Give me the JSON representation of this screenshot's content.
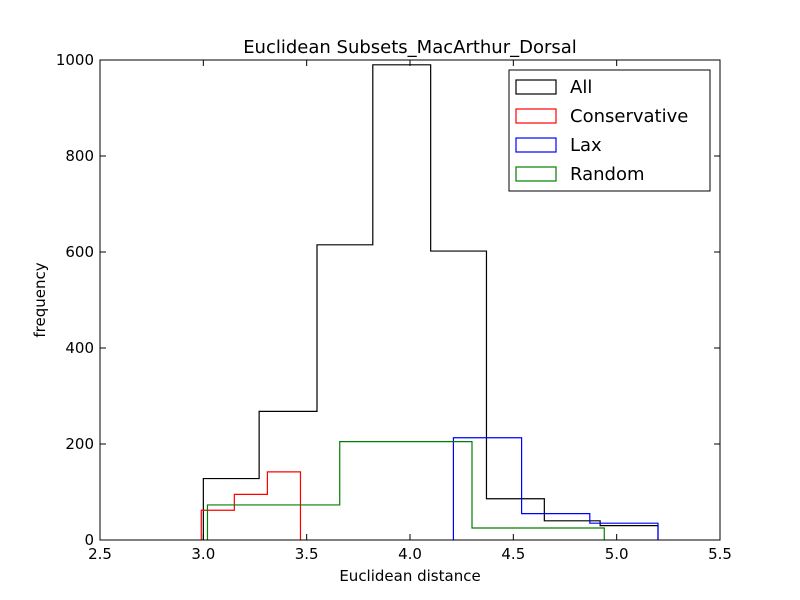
{
  "chart_data": {
    "type": "histogram",
    "title": "Euclidean Subsets_MacArthur_Dorsal",
    "xlabel": "Euclidean distance",
    "ylabel": "frequency",
    "xlim": [
      2.5,
      5.5
    ],
    "ylim": [
      0,
      1000
    ],
    "xticks": [
      "2.5",
      "3.0",
      "3.5",
      "4.0",
      "4.5",
      "5.0",
      "5.5"
    ],
    "yticks": [
      "0",
      "200",
      "400",
      "600",
      "800",
      "1000"
    ],
    "grid": false,
    "legend_position": "top-right",
    "series": [
      {
        "name": "All",
        "color": "#000000",
        "edges": [
          3.0,
          3.27,
          3.55,
          3.82,
          4.1,
          4.37,
          4.65,
          4.92,
          5.2
        ],
        "counts": [
          128,
          268,
          615,
          990,
          602,
          86,
          40,
          30
        ]
      },
      {
        "name": "Conservative",
        "color": "#ff0000",
        "edges": [
          2.99,
          3.15,
          3.31,
          3.47
        ],
        "counts": [
          62,
          95,
          142
        ]
      },
      {
        "name": "Lax",
        "color": "#0000ff",
        "edges": [
          4.21,
          4.54,
          4.87,
          5.2
        ],
        "counts": [
          213,
          55,
          35
        ]
      },
      {
        "name": "Random",
        "color": "#008000",
        "edges": [
          3.02,
          3.66,
          4.3,
          4.94
        ],
        "counts": [
          73,
          205,
          25
        ]
      }
    ]
  }
}
